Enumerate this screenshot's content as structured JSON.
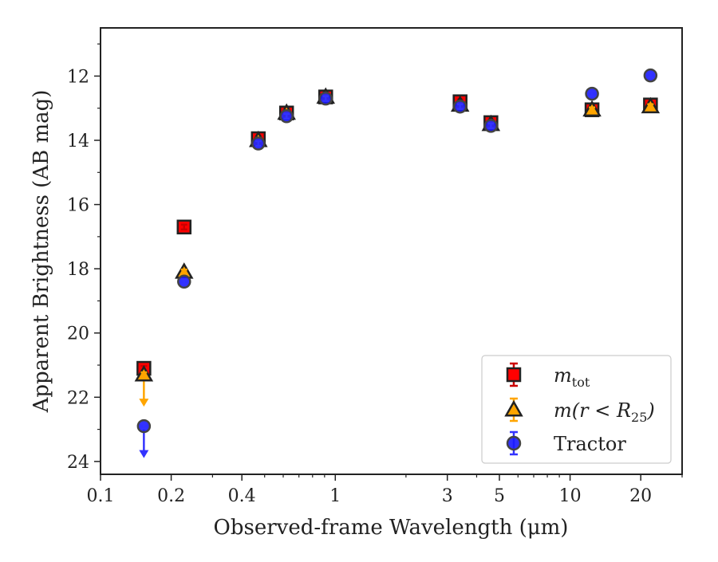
{
  "chart_data": {
    "type": "scatter",
    "title": "",
    "xlabel": "Observed-frame Wavelength (μm)",
    "ylabel": "Apparent Brightness (AB mag)",
    "x_scale": "log",
    "xlim": [
      0.1,
      30
    ],
    "ylim": [
      24.4,
      10.5
    ],
    "y_inverted": true,
    "x_ticks": [
      0.1,
      0.2,
      0.4,
      1,
      3,
      5,
      10,
      20
    ],
    "x_tick_labels": [
      "0.1",
      "0.2",
      "0.4",
      "1",
      "3",
      "5",
      "10",
      "20"
    ],
    "y_ticks": [
      12,
      14,
      16,
      18,
      20,
      22,
      24
    ],
    "y_tick_labels": [
      "12",
      "14",
      "16",
      "18",
      "20",
      "22",
      "24"
    ],
    "grid": false,
    "legend_position": "lower-right",
    "series": [
      {
        "name": "m_tot",
        "legend_main": "m",
        "legend_sub": "tot",
        "marker": "square",
        "color": "#ff0000",
        "edge_color": "#222222",
        "err_color": "#cc0000",
        "x": [
          0.153,
          0.227,
          0.47,
          0.62,
          0.91,
          3.4,
          4.6,
          12.4,
          22.0
        ],
        "y": [
          21.1,
          16.7,
          13.95,
          13.15,
          12.65,
          12.8,
          13.45,
          13.05,
          12.9
        ]
      },
      {
        "name": "m(r < R25)",
        "legend_main": "m(r < R",
        "legend_sub": "25",
        "legend_close": ")",
        "marker": "triangle",
        "color": "#ffa500",
        "edge_color": "#222222",
        "err_color": "#ffa500",
        "x": [
          0.153,
          0.227,
          0.47,
          0.62,
          0.91,
          3.4,
          4.6,
          12.4,
          22.0
        ],
        "y": [
          21.3,
          18.1,
          14.0,
          13.15,
          12.65,
          12.9,
          13.5,
          13.05,
          12.95
        ],
        "upper_limit_index": 0
      },
      {
        "name": "Tractor",
        "legend_main": "Tractor",
        "marker": "circle",
        "color": "#1a1aff",
        "edge_color": "#444444",
        "err_color": "#3333ff",
        "x": [
          0.153,
          0.227,
          0.47,
          0.62,
          0.91,
          3.4,
          4.6,
          12.4,
          22.0
        ],
        "y": [
          22.9,
          18.4,
          14.1,
          13.25,
          12.7,
          12.95,
          13.55,
          12.55,
          11.98
        ],
        "upper_limit_index": 0
      }
    ]
  }
}
